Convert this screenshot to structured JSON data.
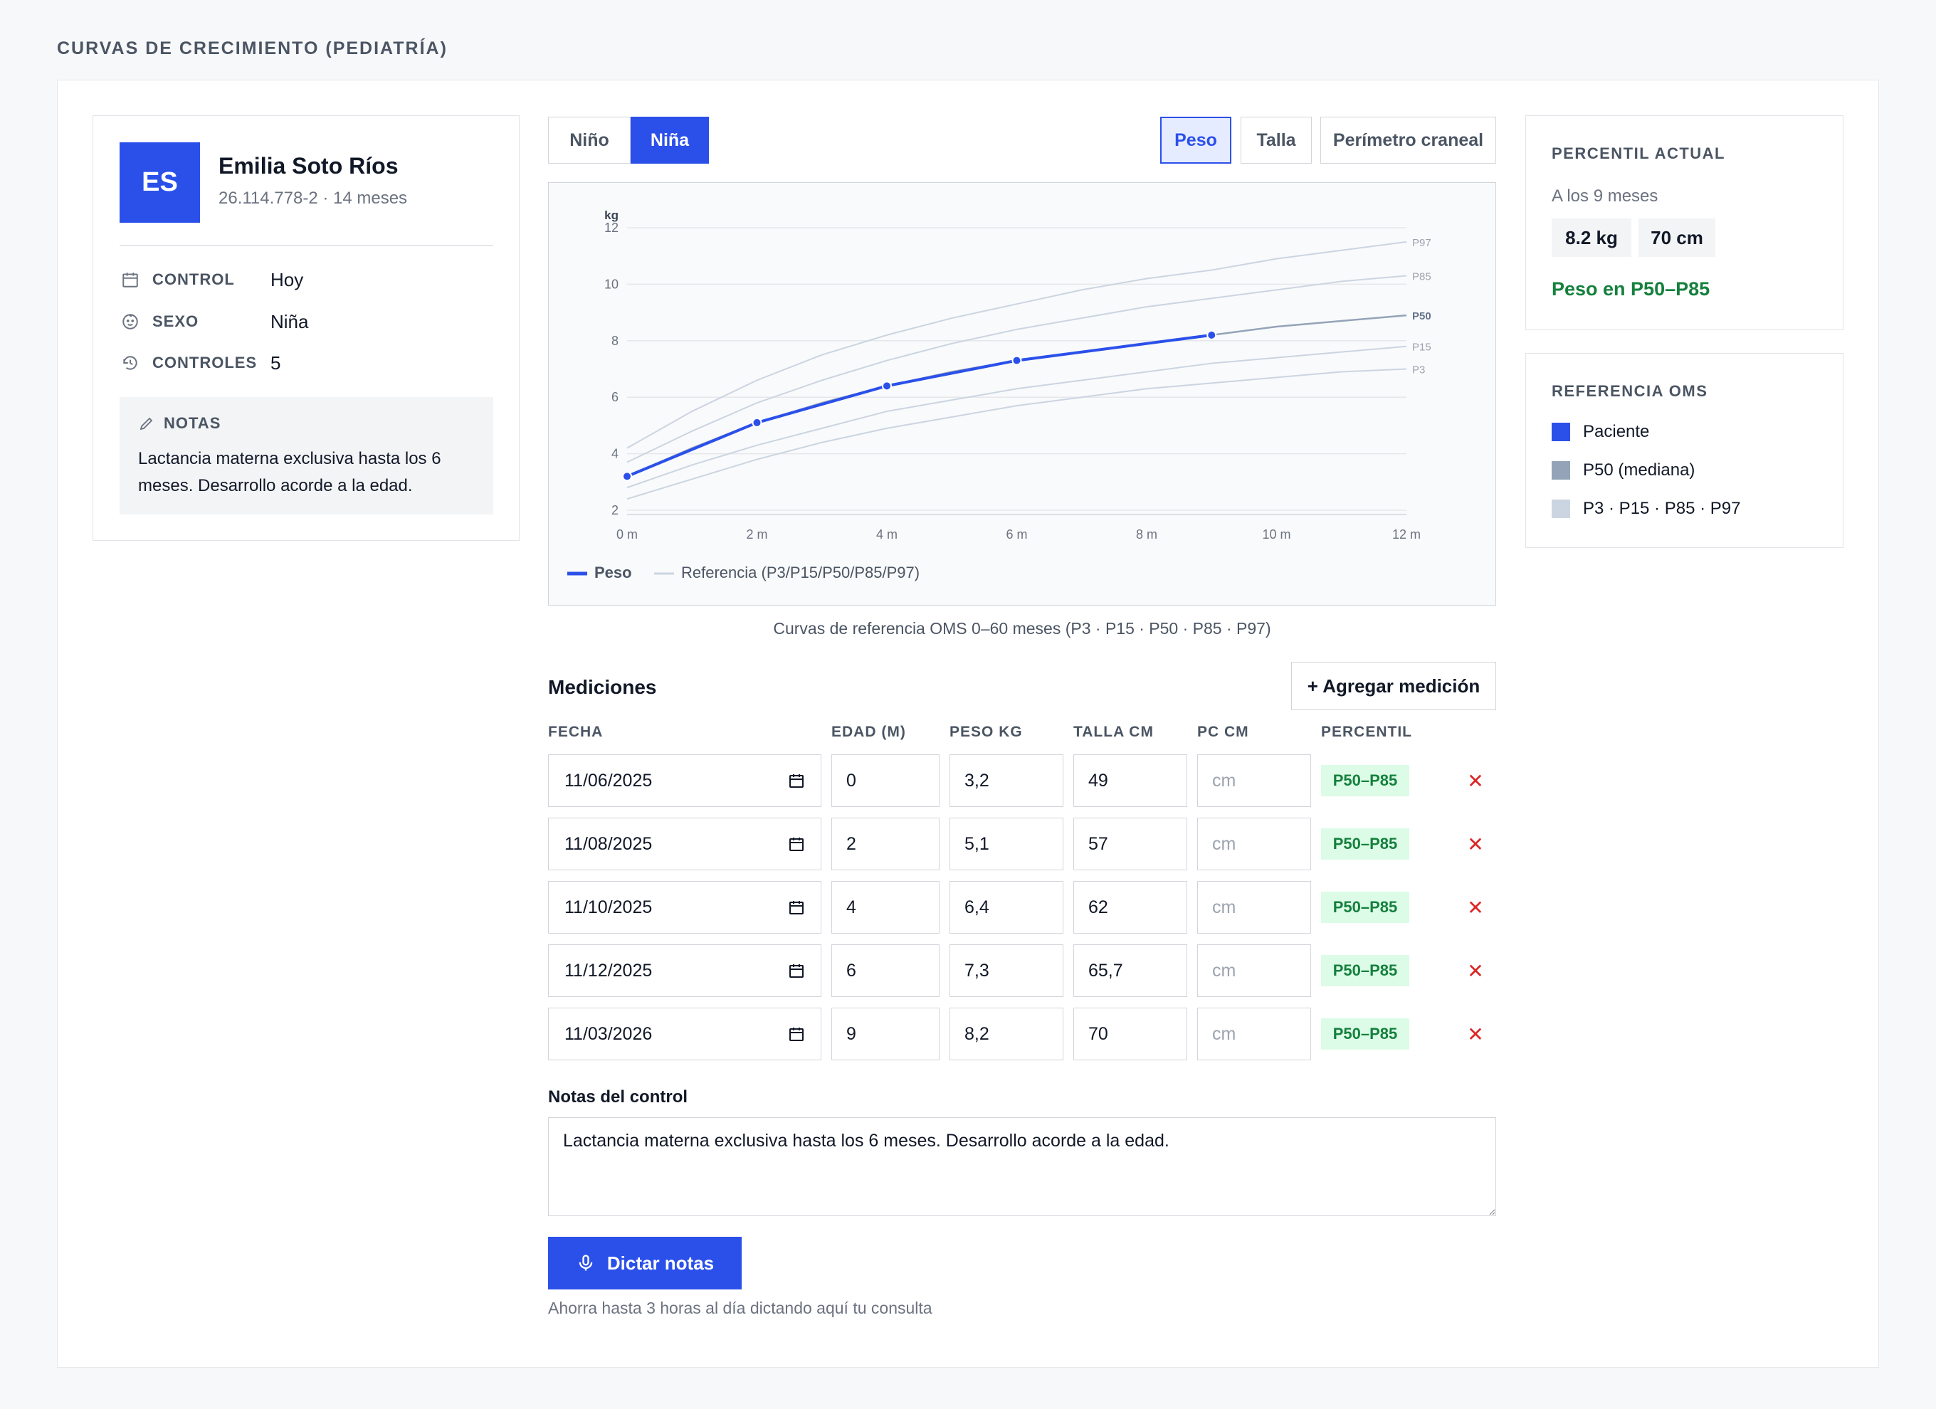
{
  "page_title": "CURVAS DE CRECIMIENTO (PEDIATRÍA)",
  "patient": {
    "initials": "ES",
    "name": "Emilia Soto Ríos",
    "meta": "26.114.778-2 · 14 meses",
    "info": [
      {
        "label": "CONTROL",
        "value": "Hoy",
        "icon": "calendar-icon"
      },
      {
        "label": "SEXO",
        "value": "Niña",
        "icon": "baby-face-icon"
      },
      {
        "label": "CONTROLES",
        "value": "5",
        "icon": "history-icon"
      }
    ],
    "notes_title": "NOTAS",
    "notes_text": "Lactancia materna exclusiva hasta los 6 meses. Desarrollo acorde a la edad."
  },
  "sex_toggle": {
    "options": [
      "Niño",
      "Niña"
    ],
    "selected": "Niña"
  },
  "metric_tabs": {
    "options": [
      "Peso",
      "Talla",
      "Perímetro craneal"
    ],
    "selected": "Peso"
  },
  "chart_data": {
    "type": "line",
    "ylabel": "kg",
    "xlabel": "",
    "x_ticks": [
      "0 m",
      "2 m",
      "4 m",
      "6 m",
      "8 m",
      "10 m",
      "12 m"
    ],
    "y_ticks": [
      2,
      4,
      6,
      8,
      10,
      12
    ],
    "xlim": [
      0,
      12
    ],
    "ylim": [
      2,
      12
    ],
    "grid": true,
    "legend_position": "bottom-left",
    "legend": [
      "Peso",
      "Referencia (P3/P15/P50/P85/P97)"
    ],
    "series": [
      {
        "name": "P3",
        "role": "reference",
        "x": [
          0,
          1,
          2,
          3,
          4,
          5,
          6,
          7,
          8,
          9,
          10,
          11,
          12
        ],
        "y": [
          2.4,
          3.1,
          3.8,
          4.4,
          4.9,
          5.3,
          5.7,
          6.0,
          6.3,
          6.5,
          6.7,
          6.9,
          7.0
        ]
      },
      {
        "name": "P15",
        "role": "reference",
        "x": [
          0,
          1,
          2,
          3,
          4,
          5,
          6,
          7,
          8,
          9,
          10,
          11,
          12
        ],
        "y": [
          2.8,
          3.6,
          4.3,
          4.9,
          5.5,
          5.9,
          6.3,
          6.6,
          6.9,
          7.2,
          7.4,
          7.6,
          7.8
        ]
      },
      {
        "name": "P50",
        "role": "median",
        "x": [
          0,
          1,
          2,
          3,
          4,
          5,
          6,
          7,
          8,
          9,
          10,
          11,
          12
        ],
        "y": [
          3.2,
          4.2,
          5.1,
          5.8,
          6.4,
          6.9,
          7.3,
          7.6,
          7.9,
          8.2,
          8.5,
          8.7,
          8.9
        ]
      },
      {
        "name": "P85",
        "role": "reference",
        "x": [
          0,
          1,
          2,
          3,
          4,
          5,
          6,
          7,
          8,
          9,
          10,
          11,
          12
        ],
        "y": [
          3.7,
          4.8,
          5.8,
          6.6,
          7.3,
          7.9,
          8.4,
          8.8,
          9.2,
          9.5,
          9.8,
          10.1,
          10.3
        ]
      },
      {
        "name": "P97",
        "role": "reference",
        "x": [
          0,
          1,
          2,
          3,
          4,
          5,
          6,
          7,
          8,
          9,
          10,
          11,
          12
        ],
        "y": [
          4.2,
          5.5,
          6.6,
          7.5,
          8.2,
          8.8,
          9.3,
          9.8,
          10.2,
          10.5,
          10.9,
          11.2,
          11.5
        ]
      },
      {
        "name": "Peso",
        "role": "patient",
        "x": [
          0,
          2,
          4,
          6,
          9
        ],
        "y": [
          3.2,
          5.1,
          6.4,
          7.3,
          8.2
        ]
      }
    ],
    "colors": {
      "patient": "#2b50ea",
      "median": "#94a3b8",
      "reference": "#cbd5e1"
    }
  },
  "chart_caption": "Curvas de referencia OMS 0–60 meses (P3 · P15 · P50 · P85 · P97)",
  "measurements": {
    "title": "Mediciones",
    "add_label": "+ Agregar medición",
    "columns": [
      "FECHA",
      "EDAD (M)",
      "PESO KG",
      "TALLA CM",
      "PC CM",
      "PERCENTIL"
    ],
    "pc_placeholder": "cm",
    "rows": [
      {
        "fecha": "11/06/2025",
        "edad": "0",
        "peso": "3,2",
        "talla": "49",
        "pc": "",
        "percentil": "P50–P85"
      },
      {
        "fecha": "11/08/2025",
        "edad": "2",
        "peso": "5,1",
        "talla": "57",
        "pc": "",
        "percentil": "P50–P85"
      },
      {
        "fecha": "11/10/2025",
        "edad": "4",
        "peso": "6,4",
        "talla": "62",
        "pc": "",
        "percentil": "P50–P85"
      },
      {
        "fecha": "11/12/2025",
        "edad": "6",
        "peso": "7,3",
        "talla": "65,7",
        "pc": "",
        "percentil": "P50–P85"
      },
      {
        "fecha": "11/03/2026",
        "edad": "9",
        "peso": "8,2",
        "talla": "70",
        "pc": "",
        "percentil": "P50–P85"
      }
    ]
  },
  "control_notes": {
    "label": "Notas del control",
    "value": "Lactancia materna exclusiva hasta los 6 meses. Desarrollo acorde a la edad."
  },
  "dictate": {
    "label": "Dictar notas",
    "hint": "Ahorra hasta 3 horas al día dictando aquí tu consulta"
  },
  "current_percentile": {
    "title": "PERCENTIL ACTUAL",
    "subtitle": "A los 9 meses",
    "weight": "8.2 kg",
    "height": "70 cm",
    "status": "Peso en P50–P85",
    "status_color": "#15803d"
  },
  "who_reference": {
    "title": "REFERENCIA OMS",
    "items": [
      {
        "label": "Paciente",
        "color": "#2b50ea"
      },
      {
        "label": "P50 (mediana)",
        "color": "#94a3b8"
      },
      {
        "label": "P3 · P15 · P85 · P97",
        "color": "#cbd5e1"
      }
    ]
  }
}
